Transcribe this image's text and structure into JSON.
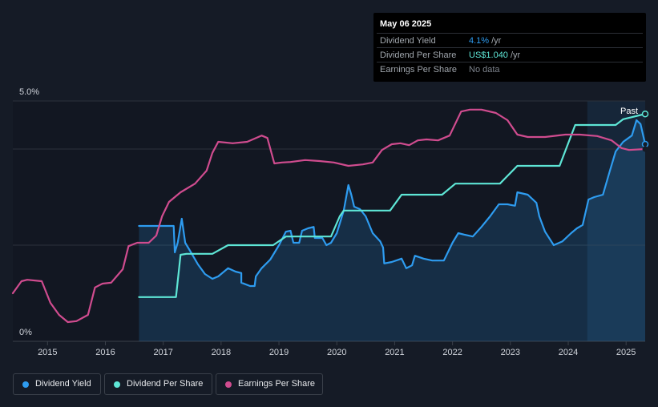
{
  "tooltip": {
    "date": "May 06 2025",
    "rows": [
      {
        "name": "Dividend Yield",
        "value": "4.1%",
        "unit": "/yr",
        "color": "#2e9cf0"
      },
      {
        "name": "Dividend Per Share",
        "value": "US$1.040",
        "unit": "/yr",
        "color": "#5ee6d6"
      },
      {
        "name": "Earnings Per Share",
        "value": "No data",
        "unit": "",
        "color": "#7d838c"
      }
    ]
  },
  "past_label": "Past",
  "legend": [
    {
      "label": "Dividend Yield",
      "color": "#2e9cf0"
    },
    {
      "label": "Dividend Per Share",
      "color": "#5ee6d6"
    },
    {
      "label": "Earnings Per Share",
      "color": "#d04c8f"
    }
  ],
  "chart_data": {
    "type": "line",
    "y_tick_labels": [
      "5.0%",
      "0%"
    ],
    "ylim": [
      0,
      5.0
    ],
    "xlim": [
      2014.4,
      2025.33
    ],
    "x_ticks": [
      2015,
      2016,
      2017,
      2018,
      2019,
      2020,
      2021,
      2022,
      2023,
      2024,
      2025
    ],
    "x_tick_labels": [
      "2015",
      "2016",
      "2017",
      "2018",
      "2019",
      "2020",
      "2021",
      "2022",
      "2023",
      "2024",
      "2025"
    ],
    "grid": true,
    "past_region_start": 2024.33,
    "series": [
      {
        "name": "Dividend Yield",
        "color": "#2e9cf0",
        "area": true,
        "points": [
          [
            2016.58,
            2.4
          ],
          [
            2017.18,
            2.4
          ],
          [
            2017.2,
            1.85
          ],
          [
            2017.25,
            2.05
          ],
          [
            2017.32,
            2.55
          ],
          [
            2017.38,
            2.05
          ],
          [
            2017.48,
            1.85
          ],
          [
            2017.6,
            1.6
          ],
          [
            2017.72,
            1.4
          ],
          [
            2017.85,
            1.3
          ],
          [
            2017.95,
            1.35
          ],
          [
            2018.12,
            1.52
          ],
          [
            2018.25,
            1.45
          ],
          [
            2018.35,
            1.42
          ],
          [
            2018.35,
            1.22
          ],
          [
            2018.5,
            1.15
          ],
          [
            2018.58,
            1.15
          ],
          [
            2018.6,
            1.35
          ],
          [
            2018.7,
            1.52
          ],
          [
            2018.85,
            1.7
          ],
          [
            2019.0,
            2.0
          ],
          [
            2019.12,
            2.28
          ],
          [
            2019.2,
            2.3
          ],
          [
            2019.25,
            2.05
          ],
          [
            2019.35,
            2.05
          ],
          [
            2019.4,
            2.3
          ],
          [
            2019.5,
            2.35
          ],
          [
            2019.6,
            2.38
          ],
          [
            2019.62,
            2.15
          ],
          [
            2019.75,
            2.15
          ],
          [
            2019.82,
            2.0
          ],
          [
            2019.9,
            2.05
          ],
          [
            2020.0,
            2.25
          ],
          [
            2020.12,
            2.72
          ],
          [
            2020.2,
            3.25
          ],
          [
            2020.25,
            3.05
          ],
          [
            2020.3,
            2.8
          ],
          [
            2020.4,
            2.75
          ],
          [
            2020.5,
            2.6
          ],
          [
            2020.62,
            2.25
          ],
          [
            2020.75,
            2.08
          ],
          [
            2020.8,
            1.95
          ],
          [
            2020.82,
            1.62
          ],
          [
            2020.95,
            1.65
          ],
          [
            2021.12,
            1.72
          ],
          [
            2021.2,
            1.52
          ],
          [
            2021.3,
            1.58
          ],
          [
            2021.35,
            1.78
          ],
          [
            2021.5,
            1.72
          ],
          [
            2021.65,
            1.68
          ],
          [
            2021.78,
            1.68
          ],
          [
            2021.85,
            1.68
          ],
          [
            2022.0,
            2.05
          ],
          [
            2022.1,
            2.25
          ],
          [
            2022.2,
            2.22
          ],
          [
            2022.35,
            2.18
          ],
          [
            2022.5,
            2.38
          ],
          [
            2022.65,
            2.6
          ],
          [
            2022.8,
            2.85
          ],
          [
            2022.95,
            2.85
          ],
          [
            2023.08,
            2.82
          ],
          [
            2023.12,
            3.1
          ],
          [
            2023.3,
            3.05
          ],
          [
            2023.45,
            2.88
          ],
          [
            2023.5,
            2.6
          ],
          [
            2023.6,
            2.28
          ],
          [
            2023.75,
            2.0
          ],
          [
            2023.9,
            2.08
          ],
          [
            2024.05,
            2.25
          ],
          [
            2024.15,
            2.35
          ],
          [
            2024.25,
            2.42
          ],
          [
            2024.35,
            2.95
          ],
          [
            2024.45,
            3.0
          ],
          [
            2024.6,
            3.05
          ],
          [
            2024.72,
            3.55
          ],
          [
            2024.82,
            3.95
          ],
          [
            2024.95,
            4.15
          ],
          [
            2025.1,
            4.28
          ],
          [
            2025.18,
            4.6
          ],
          [
            2025.25,
            4.52
          ],
          [
            2025.33,
            4.1
          ]
        ]
      },
      {
        "name": "Dividend Per Share",
        "color": "#5ee6d6",
        "area": false,
        "points": [
          [
            2016.58,
            0.92
          ],
          [
            2017.22,
            0.92
          ],
          [
            2017.3,
            1.8
          ],
          [
            2017.4,
            1.82
          ],
          [
            2017.85,
            1.82
          ],
          [
            2018.12,
            2.0
          ],
          [
            2018.9,
            2.0
          ],
          [
            2019.12,
            2.18
          ],
          [
            2019.9,
            2.18
          ],
          [
            2020.05,
            2.6
          ],
          [
            2020.12,
            2.72
          ],
          [
            2020.92,
            2.72
          ],
          [
            2021.12,
            3.05
          ],
          [
            2021.82,
            3.05
          ],
          [
            2022.05,
            3.28
          ],
          [
            2022.82,
            3.28
          ],
          [
            2023.12,
            3.65
          ],
          [
            2023.85,
            3.65
          ],
          [
            2024.12,
            4.5
          ],
          [
            2024.82,
            4.5
          ],
          [
            2024.95,
            4.62
          ],
          [
            2025.33,
            4.73
          ]
        ]
      },
      {
        "name": "Earnings Per Share",
        "color": "#d04c8f",
        "area": false,
        "points": [
          [
            2014.4,
            1.0
          ],
          [
            2014.55,
            1.25
          ],
          [
            2014.65,
            1.28
          ],
          [
            2014.9,
            1.25
          ],
          [
            2015.05,
            0.8
          ],
          [
            2015.2,
            0.55
          ],
          [
            2015.35,
            0.4
          ],
          [
            2015.5,
            0.42
          ],
          [
            2015.7,
            0.55
          ],
          [
            2015.82,
            1.12
          ],
          [
            2015.95,
            1.2
          ],
          [
            2016.1,
            1.22
          ],
          [
            2016.3,
            1.5
          ],
          [
            2016.4,
            1.98
          ],
          [
            2016.55,
            2.05
          ],
          [
            2016.75,
            2.05
          ],
          [
            2016.88,
            2.2
          ],
          [
            2016.98,
            2.6
          ],
          [
            2017.1,
            2.9
          ],
          [
            2017.3,
            3.1
          ],
          [
            2017.55,
            3.28
          ],
          [
            2017.75,
            3.55
          ],
          [
            2017.85,
            3.92
          ],
          [
            2017.95,
            4.15
          ],
          [
            2018.2,
            4.12
          ],
          [
            2018.45,
            4.15
          ],
          [
            2018.7,
            4.28
          ],
          [
            2018.8,
            4.23
          ],
          [
            2018.92,
            3.7
          ],
          [
            2019.05,
            3.72
          ],
          [
            2019.2,
            3.73
          ],
          [
            2019.45,
            3.77
          ],
          [
            2019.7,
            3.75
          ],
          [
            2019.95,
            3.72
          ],
          [
            2020.2,
            3.65
          ],
          [
            2020.45,
            3.68
          ],
          [
            2020.62,
            3.72
          ],
          [
            2020.78,
            3.98
          ],
          [
            2020.95,
            4.1
          ],
          [
            2021.1,
            4.12
          ],
          [
            2021.25,
            4.08
          ],
          [
            2021.4,
            4.18
          ],
          [
            2021.55,
            4.2
          ],
          [
            2021.75,
            4.18
          ],
          [
            2021.95,
            4.28
          ],
          [
            2022.15,
            4.78
          ],
          [
            2022.3,
            4.82
          ],
          [
            2022.5,
            4.82
          ],
          [
            2022.75,
            4.75
          ],
          [
            2022.95,
            4.6
          ],
          [
            2023.12,
            4.3
          ],
          [
            2023.3,
            4.25
          ],
          [
            2023.6,
            4.25
          ],
          [
            2023.95,
            4.3
          ],
          [
            2024.2,
            4.3
          ],
          [
            2024.5,
            4.27
          ],
          [
            2024.75,
            4.18
          ],
          [
            2024.92,
            4.02
          ],
          [
            2025.05,
            3.98
          ],
          [
            2025.33,
            4.0
          ]
        ]
      }
    ]
  }
}
